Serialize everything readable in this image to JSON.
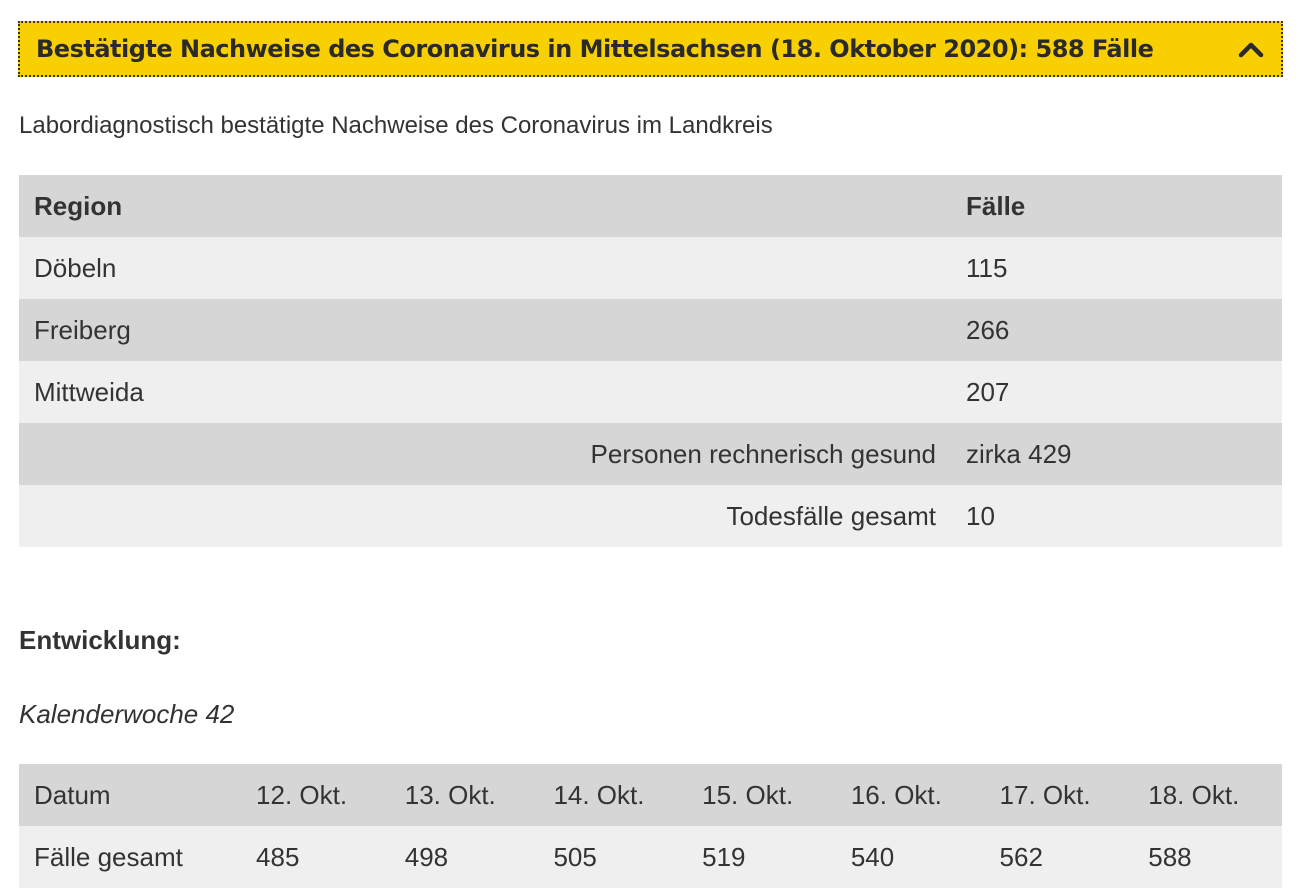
{
  "accordion": {
    "title": "Bestätigte Nachweise des Coronavirus in Mittelsachsen (18. Oktober 2020): 588 Fälle",
    "icon": "chevron-up-icon"
  },
  "intro_text": "Labordiagnostisch bestätigte Nachweise des Coronavirus im Landkreis",
  "region_table": {
    "header": {
      "region": "Region",
      "cases": "Fälle"
    },
    "rows": [
      {
        "region": "Döbeln",
        "cases": "115"
      },
      {
        "region": "Freiberg",
        "cases": "266"
      },
      {
        "region": "Mittweida",
        "cases": "207"
      }
    ],
    "summary": [
      {
        "label": "Personen rechnerisch gesund",
        "value": "zirka 429"
      },
      {
        "label": "Todesfälle gesamt",
        "value": "10"
      }
    ]
  },
  "development": {
    "heading": "Entwicklung:",
    "week": "Kalenderwoche 42",
    "table": {
      "date_label": "Datum",
      "cases_label": "Fälle gesamt",
      "dates": [
        "12. Okt.",
        "13. Okt.",
        "14. Okt.",
        "15. Okt.",
        "16. Okt.",
        "17. Okt.",
        "18. Okt."
      ],
      "cases": [
        "485",
        "498",
        "505",
        "519",
        "540",
        "562",
        "588"
      ]
    }
  },
  "colors": {
    "accent": "#f8cf00",
    "row_dark": "#d6d6d6",
    "row_light": "#efefef",
    "text": "#333333"
  }
}
